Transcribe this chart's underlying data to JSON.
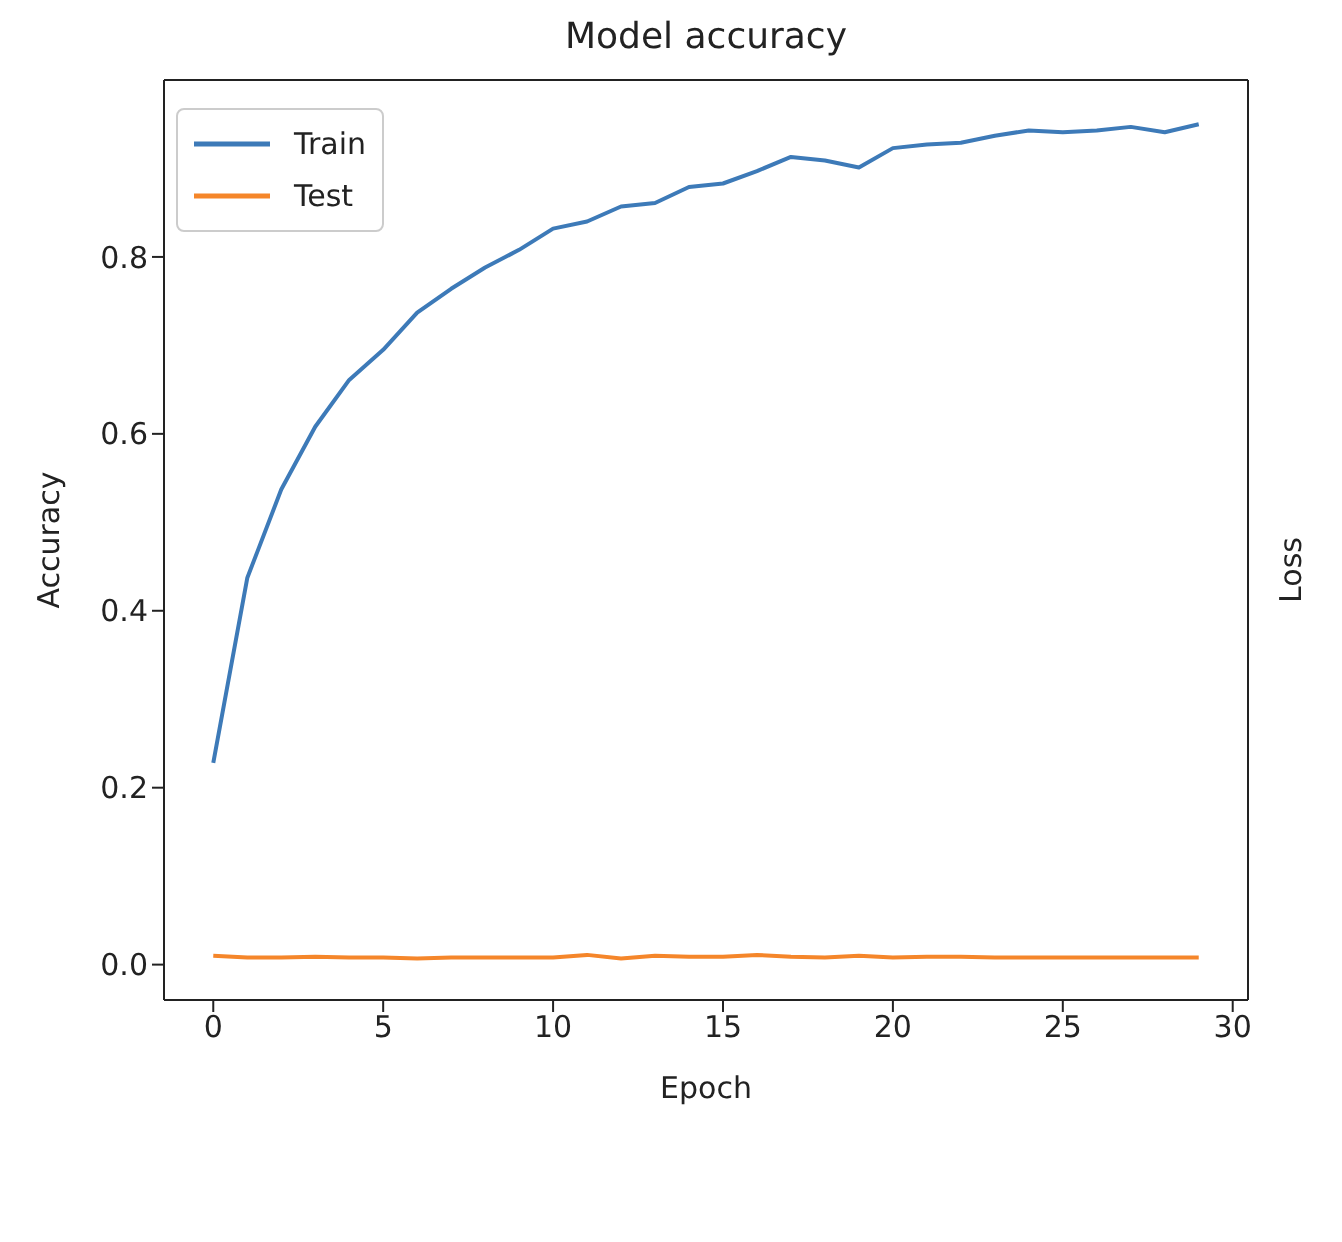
{
  "chart_data": {
    "type": "line",
    "title": "Model accuracy",
    "xlabel": "Epoch",
    "ylabel": "Accuracy",
    "y2label": "Loss",
    "x": [
      0,
      1,
      2,
      3,
      4,
      5,
      6,
      7,
      8,
      9,
      10,
      11,
      12,
      13,
      14,
      15,
      16,
      17,
      18,
      19,
      20,
      21,
      22,
      23,
      24,
      25,
      26,
      27,
      28,
      29
    ],
    "series": [
      {
        "name": "Train",
        "color": "#3d7ab8",
        "values": [
          0.228,
          0.437,
          0.537,
          0.608,
          0.661,
          0.695,
          0.737,
          0.764,
          0.788,
          0.808,
          0.832,
          0.84,
          0.857,
          0.861,
          0.879,
          0.883,
          0.897,
          0.913,
          0.909,
          0.901,
          0.923,
          0.927,
          0.929,
          0.937,
          0.943,
          0.941,
          0.943,
          0.947,
          0.941,
          0.95
        ]
      },
      {
        "name": "Test",
        "color": "#f5862a",
        "values": [
          0.01,
          0.008,
          0.008,
          0.009,
          0.008,
          0.008,
          0.007,
          0.008,
          0.008,
          0.008,
          0.008,
          0.011,
          0.007,
          0.01,
          0.009,
          0.009,
          0.011,
          0.009,
          0.008,
          0.01,
          0.008,
          0.009,
          0.009,
          0.008,
          0.008,
          0.008,
          0.008,
          0.008,
          0.008,
          0.008
        ]
      }
    ],
    "xlim": [
      -1.45,
      30.45
    ],
    "xticks": [
      0,
      5,
      10,
      15,
      20,
      25,
      30
    ],
    "ylim": [
      -0.04,
      1.0
    ],
    "yticks": [
      {
        "value": 0,
        "label": "0.0"
      },
      {
        "value": 0.2,
        "label": "0.2"
      },
      {
        "value": 0.4,
        "label": "0.4"
      },
      {
        "value": 0.6,
        "label": "0.6"
      },
      {
        "value": 0.8,
        "label": "0.8"
      }
    ],
    "grid": false,
    "legend": "top left",
    "marker": "none",
    "line_style": "solid"
  }
}
